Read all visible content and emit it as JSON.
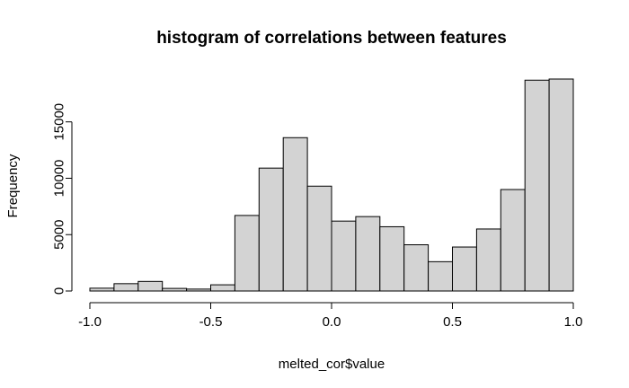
{
  "chart_data": {
    "type": "bar",
    "title": "histogram of correlations between features",
    "xlabel": "melted_cor$value",
    "ylabel": "Frequency",
    "xlim": [
      -1.0,
      1.0
    ],
    "ylim": [
      0,
      18800
    ],
    "bin_width": 0.1,
    "x": [
      -1.0,
      -0.9,
      -0.8,
      -0.7,
      -0.6,
      -0.5,
      -0.4,
      -0.3,
      -0.2,
      -0.1,
      0.0,
      0.1,
      0.2,
      0.3,
      0.4,
      0.5,
      0.6,
      0.7,
      0.8,
      0.9
    ],
    "values": [
      250,
      650,
      850,
      230,
      170,
      550,
      6700,
      10900,
      13600,
      9300,
      6200,
      6600,
      5700,
      4100,
      2600,
      3900,
      5500,
      9000,
      18700,
      18800
    ],
    "x_ticks": [
      -1.0,
      -0.5,
      0.0,
      0.5,
      1.0
    ],
    "x_tick_labels": [
      "-1.0",
      "-0.5",
      "0.0",
      "0.5",
      "1.0"
    ],
    "y_ticks": [
      0,
      5000,
      10000,
      15000
    ],
    "y_tick_labels": [
      "0",
      "5000",
      "10000",
      "15000"
    ],
    "grid": false,
    "colors": {
      "bar_fill": "#d3d3d3",
      "bar_stroke": "#000000",
      "axis": "#000000",
      "text": "#000000",
      "background": "#ffffff"
    }
  }
}
